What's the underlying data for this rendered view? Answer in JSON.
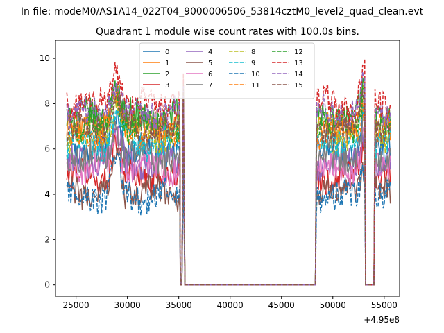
{
  "chart_data": {
    "type": "line",
    "suptitle": "In file: modeM0/AS1A14_022T04_9000006506_53814cztM0_level2_quad_clean.evt",
    "title": "Quadrant 1 module wise count rates with 100.0s bins.",
    "xlabel": "",
    "ylabel": "",
    "x_offset_label": "+4.95e8",
    "xlim": [
      23000,
      56500
    ],
    "ylim": [
      -0.5,
      10.8
    ],
    "x_ticks": [
      25000,
      30000,
      35000,
      40000,
      45000,
      50000,
      55000
    ],
    "x_tick_labels": [
      "25000",
      "30000",
      "35000",
      "40000",
      "45000",
      "50000",
      "55000"
    ],
    "y_ticks": [
      0,
      2,
      4,
      6,
      8,
      10
    ],
    "y_tick_labels": [
      "0",
      "2",
      "4",
      "6",
      "8",
      "10"
    ],
    "grid": false,
    "legend_position": "top-center",
    "legend_columns": 4,
    "time_segments": [
      {
        "x_start": 24100,
        "x_end": 35100,
        "shape": "active"
      },
      {
        "x_start": 35150,
        "x_end": 35250,
        "shape": "zero"
      },
      {
        "x_start": 35300,
        "x_end": 35600,
        "shape": "spike"
      },
      {
        "x_start": 35700,
        "x_end": 48300,
        "shape": "zero"
      },
      {
        "x_start": 48400,
        "x_end": 53100,
        "shape": "active"
      },
      {
        "x_start": 53200,
        "x_end": 54000,
        "shape": "zero"
      },
      {
        "x_start": 54100,
        "x_end": 55600,
        "shape": "active"
      }
    ],
    "flare_events": [
      {
        "x": 28900,
        "peak_boost": 1.6
      },
      {
        "x": 53150,
        "peak_boost": 1.4
      }
    ],
    "series": [
      {
        "name": "0",
        "style": "solid",
        "color": "#1f77b4",
        "mean_level": 6.0
      },
      {
        "name": "1",
        "style": "solid",
        "color": "#ff7f0e",
        "mean_level": 7.0
      },
      {
        "name": "2",
        "style": "solid",
        "color": "#2ca02c",
        "mean_level": 7.4
      },
      {
        "name": "3",
        "style": "solid",
        "color": "#d62728",
        "mean_level": 4.8
      },
      {
        "name": "4",
        "style": "solid",
        "color": "#9467bd",
        "mean_level": 5.4
      },
      {
        "name": "5",
        "style": "solid",
        "color": "#8c564b",
        "mean_level": 4.1
      },
      {
        "name": "6",
        "style": "solid",
        "color": "#e377c2",
        "mean_level": 5.2
      },
      {
        "name": "7",
        "style": "solid",
        "color": "#7f7f7f",
        "mean_level": 5.7
      },
      {
        "name": "8",
        "style": "dashed",
        "color": "#bcbd22",
        "mean_level": 6.6
      },
      {
        "name": "9",
        "style": "dashed",
        "color": "#17becf",
        "mean_level": 6.3
      },
      {
        "name": "10",
        "style": "dashed",
        "color": "#1f77b4",
        "mean_level": 3.9
      },
      {
        "name": "11",
        "style": "dashed",
        "color": "#ff7f0e",
        "mean_level": 6.8
      },
      {
        "name": "12",
        "style": "dashed",
        "color": "#2ca02c",
        "mean_level": 7.1
      },
      {
        "name": "13",
        "style": "dashed",
        "color": "#d62728",
        "mean_level": 8.0
      },
      {
        "name": "14",
        "style": "dashed",
        "color": "#9467bd",
        "mean_level": 7.6
      },
      {
        "name": "15",
        "style": "dashed",
        "color": "#8c564b",
        "mean_level": 6.9
      }
    ]
  }
}
